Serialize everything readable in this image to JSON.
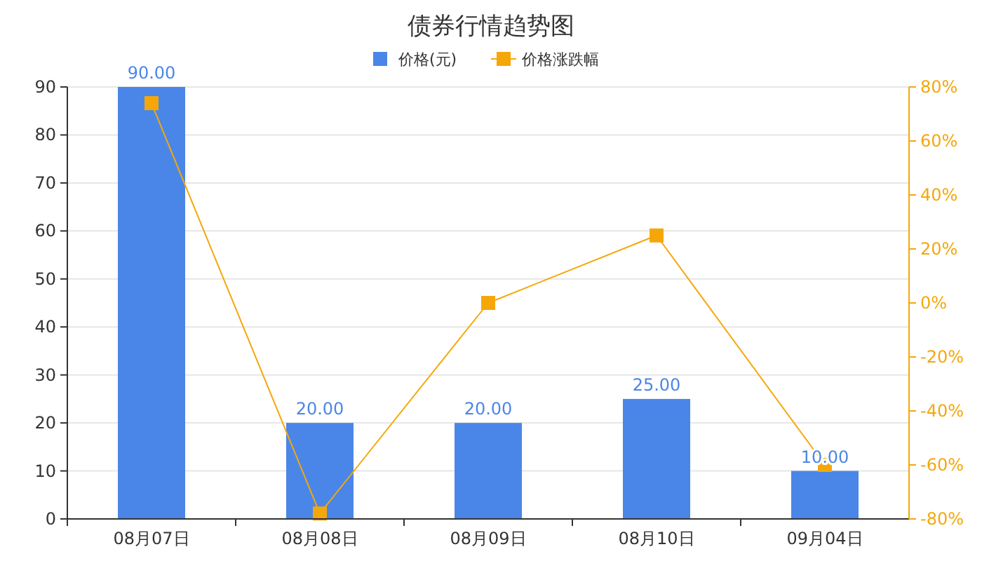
{
  "chart_data": {
    "type": "bar",
    "title": "债券行情趋势图",
    "categories": [
      "08月07日",
      "08月08日",
      "08月09日",
      "08月10日",
      "09月04日"
    ],
    "series": [
      {
        "name": "价格(元)",
        "color": "#4a86e8",
        "values": [
          90,
          20,
          20,
          25,
          10
        ],
        "value_labels": [
          "90.00",
          "20.00",
          "20.00",
          "25.00",
          "10.00"
        ]
      },
      {
        "name": "价格涨跌幅",
        "type": "line",
        "axis": "y2",
        "color": "#f5a70a",
        "values": [
          74,
          -78,
          0,
          25,
          -60
        ]
      }
    ],
    "ylim": [
      0,
      90
    ],
    "yticks": [
      0,
      10,
      20,
      30,
      40,
      50,
      60,
      70,
      80,
      90
    ],
    "y2lim": [
      -80,
      80
    ],
    "y2ticks": [
      {
        "value": -80,
        "label": "-80%"
      },
      {
        "value": -60,
        "label": "-60%"
      },
      {
        "value": -40,
        "label": "-40%"
      },
      {
        "value": -20,
        "label": "-20%"
      },
      {
        "value": 0,
        "label": "0%"
      },
      {
        "value": 20,
        "label": "20%"
      },
      {
        "value": 40,
        "label": "40%"
      },
      {
        "value": 60,
        "label": "60%"
      },
      {
        "value": 80,
        "label": "80%"
      }
    ],
    "grid": "y",
    "legend": "top",
    "marker": "square"
  }
}
